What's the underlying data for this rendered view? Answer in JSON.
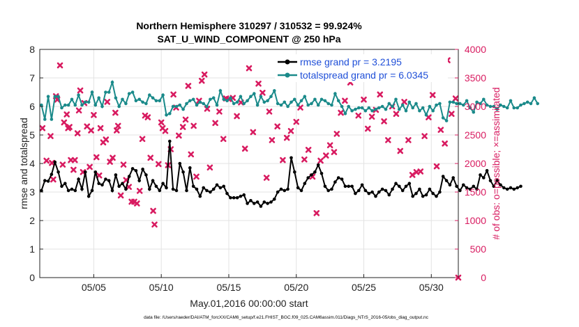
{
  "figure": {
    "title_line1": "Northern Hemisphere 310297 / 310532 = 99.924%",
    "title_line2": "SAT_U_WIND_COMPONENT @ 250 hPa",
    "footer": "data file: /Users/raeder/DAI/ATM_forcXX/CAM6_setup/f.e21.FHIST_BGC.f09_025.CAM6assim.011/Diags_NTrS_2016-05/obs_diag_output.nc"
  },
  "chart_data": {
    "type": "line",
    "title": "Northern Hemisphere 310297 / 310532 = 99.924%",
    "subtitle": "SAT_U_WIND_COMPONENT @ 250 hPa",
    "xlabel": "May.01,2016 00:00:00 start",
    "ylabel": "rmse and totalspread",
    "y2label": "# of obs: o=possible; ×=assimilated",
    "xlim": [
      1.0,
      32.0
    ],
    "ylim": [
      0,
      8
    ],
    "y2lim": [
      0,
      4000
    ],
    "xticks": [
      5,
      10,
      15,
      20,
      25,
      30
    ],
    "xticklabels": [
      "05/05",
      "05/10",
      "05/15",
      "05/20",
      "05/25",
      "05/30"
    ],
    "yticks": [
      0,
      1,
      2,
      3,
      4,
      5,
      6,
      7,
      8
    ],
    "y2ticks": [
      0,
      500,
      1000,
      1500,
      2000,
      2500,
      3000,
      3500,
      4000
    ],
    "grid": true,
    "legend_position": "top-right",
    "colors": {
      "rmse": "#000000",
      "spread": "#1a8a8a",
      "obs": "#d81b60",
      "y2axis": "#d81b60",
      "legend_text": "#1f4fd8"
    },
    "series": [
      {
        "name": "rmse grand pr = 3.2195",
        "axis": "left",
        "x_start": 1.125,
        "x_step": 0.25,
        "values": [
          3.05,
          3.4,
          3.38,
          3.62,
          4.05,
          3.7,
          3.2,
          3.3,
          3.05,
          3.1,
          3.05,
          3.45,
          3.1,
          3.7,
          2.85,
          3.05,
          3.7,
          3.3,
          3.25,
          3.45,
          3.4,
          3.05,
          3.6,
          3.2,
          3.3,
          3.1,
          3.55,
          3.82,
          3.75,
          3.4,
          3.8,
          3.6,
          3.1,
          3.4,
          3.2,
          3.05,
          3.3,
          3.15,
          4.78,
          3.1,
          3.05,
          4.0,
          3.7,
          3.05,
          3.85,
          3.2,
          3.1,
          2.85,
          3.15,
          3.05,
          3.0,
          3.1,
          3.25,
          3.15,
          3.2,
          2.95,
          2.8,
          2.8,
          2.8,
          2.85,
          2.9,
          2.6,
          2.7,
          2.6,
          2.65,
          2.5,
          2.65,
          2.6,
          2.65,
          2.75,
          3.0,
          3.1,
          3.05,
          3.1,
          4.2,
          3.7,
          3.15,
          3.05,
          3.3,
          3.5,
          3.6,
          3.7,
          3.95,
          3.65,
          3.2,
          3.05,
          3.1,
          3.35,
          3.5,
          3.45,
          3.2,
          3.2,
          3.2,
          2.95,
          3.05,
          3.25,
          3.05,
          2.95,
          3.0,
          2.85,
          3.0,
          3.1,
          3.05,
          2.9,
          3.1,
          3.3,
          3.2,
          3.05,
          3.2,
          3.3,
          2.85,
          2.95,
          3.1,
          2.85,
          2.9,
          3.1,
          2.95,
          2.85,
          3.0,
          3.55,
          3.4,
          3.25,
          3.5,
          3.2,
          3.05,
          3.25,
          3.15,
          3.1,
          3.2,
          3.1,
          3.6,
          3.5,
          3.75,
          3.4,
          3.2,
          3.4,
          3.25,
          3.15,
          3.1,
          3.15,
          3.1,
          3.15,
          3.2
        ]
      },
      {
        "name": "totalspread grand pr = 6.0345",
        "axis": "left",
        "x_start": 1.125,
        "x_step": 0.25,
        "values": [
          6.05,
          5.55,
          6.35,
          5.55,
          6.35,
          6.35,
          5.95,
          6.05,
          6.05,
          6.25,
          6.05,
          6.4,
          6.05,
          6.15,
          6.15,
          6.5,
          6.05,
          6.3,
          6.0,
          6.5,
          6.5,
          6.85,
          6.3,
          6.0,
          6.25,
          6.1,
          6.45,
          6.5,
          6.2,
          6.25,
          6.15,
          6.1,
          6.4,
          6.3,
          6.2,
          6.2,
          6.4,
          5.7,
          5.75,
          6.0,
          6.0,
          6.05,
          5.9,
          6.1,
          6.2,
          6.25,
          6.05,
          6.15,
          6.1,
          6.0,
          6.25,
          6.3,
          6.05,
          6.55,
          6.25,
          6.2,
          6.3,
          6.1,
          6.15,
          6.35,
          6.1,
          6.2,
          6.35,
          6.45,
          6.05,
          6.35,
          6.15,
          6.2,
          6.35,
          6.55,
          6.1,
          6.05,
          6.15,
          6.0,
          6.15,
          6.25,
          6.05,
          6.2,
          6.35,
          6.05,
          6.1,
          6.25,
          6.05,
          6.25,
          6.2,
          6.1,
          6.05,
          6.45,
          6.2,
          6.0,
          5.75,
          6.0,
          5.85,
          5.9,
          5.95,
          5.95,
          5.85,
          5.95,
          5.85,
          5.9,
          5.95,
          6.0,
          5.9,
          6.1,
          6.0,
          6.25,
          5.9,
          6.05,
          5.85,
          6.15,
          5.95,
          6.1,
          5.85,
          5.95,
          5.7,
          6.0,
          5.85,
          6.05,
          6.1,
          5.6,
          5.5,
          6.15,
          6.15,
          6.1,
          6.1,
          6.05,
          6.2,
          5.95,
          5.8,
          6.15,
          6.1,
          6.25,
          6.05,
          6.0,
          6.0,
          5.9,
          6.05,
          6.0,
          5.95,
          6.2,
          5.95,
          5.95,
          6.05,
          6.1,
          6.15,
          6.1,
          6.3,
          6.1
        ]
      },
      {
        "name": "assimilated",
        "axis": "right",
        "marker": "x",
        "points": [
          [
            1.2,
            2620
          ],
          [
            1.5,
            2050
          ],
          [
            1.8,
            2480
          ],
          [
            1.9,
            2010
          ],
          [
            2.0,
            1720
          ],
          [
            2.2,
            3180
          ],
          [
            2.3,
            3120
          ],
          [
            2.5,
            3720
          ],
          [
            2.7,
            1980
          ],
          [
            2.8,
            2720
          ],
          [
            3.0,
            2860
          ],
          [
            3.1,
            2620
          ],
          [
            3.2,
            2640
          ],
          [
            3.3,
            2060
          ],
          [
            3.5,
            1890
          ],
          [
            3.6,
            2060
          ],
          [
            3.8,
            2530
          ],
          [
            3.9,
            2930
          ],
          [
            4.0,
            3280
          ],
          [
            4.2,
            1850
          ],
          [
            4.3,
            3060
          ],
          [
            4.5,
            2650
          ],
          [
            4.7,
            1940
          ],
          [
            4.8,
            2580
          ],
          [
            5.0,
            2850
          ],
          [
            5.2,
            2110
          ],
          [
            5.4,
            1790
          ],
          [
            5.5,
            2620
          ],
          [
            5.7,
            2370
          ],
          [
            5.9,
            2420
          ],
          [
            6.0,
            3080
          ],
          [
            6.2,
            2030
          ],
          [
            6.4,
            2100
          ],
          [
            6.6,
            2890
          ],
          [
            6.7,
            2580
          ],
          [
            6.8,
            2660
          ],
          [
            7.0,
            1440
          ],
          [
            7.2,
            1980
          ],
          [
            7.4,
            1710
          ],
          [
            7.6,
            1590
          ],
          [
            7.8,
            1330
          ],
          [
            8.0,
            1330
          ],
          [
            8.2,
            1300
          ],
          [
            8.4,
            1520
          ],
          [
            8.6,
            2430
          ],
          [
            8.8,
            2840
          ],
          [
            9.0,
            2810
          ],
          [
            9.2,
            2100
          ],
          [
            9.4,
            1170
          ],
          [
            9.5,
            930
          ],
          [
            9.8,
            1990
          ],
          [
            10.0,
            2720
          ],
          [
            10.1,
            2620
          ],
          [
            10.3,
            2570
          ],
          [
            10.5,
            1970
          ],
          [
            10.7,
            2250
          ],
          [
            10.9,
            3210
          ],
          [
            11.1,
            2980
          ],
          [
            11.3,
            2490
          ],
          [
            11.6,
            2640
          ],
          [
            11.8,
            2770
          ],
          [
            12.0,
            3360
          ],
          [
            12.2,
            2160
          ],
          [
            12.4,
            2660
          ],
          [
            12.6,
            1770
          ],
          [
            12.8,
            3100
          ],
          [
            13.0,
            3450
          ],
          [
            13.2,
            3560
          ],
          [
            13.4,
            2960
          ],
          [
            13.6,
            1930
          ],
          [
            14.0,
            2710
          ],
          [
            14.3,
            2910
          ],
          [
            14.6,
            2430
          ],
          [
            14.8,
            3140
          ],
          [
            15.0,
            3130
          ],
          [
            15.3,
            3150
          ],
          [
            15.6,
            2830
          ],
          [
            15.9,
            3070
          ],
          [
            16.2,
            2260
          ],
          [
            16.5,
            3670
          ],
          [
            16.8,
            2550
          ],
          [
            17.2,
            3400
          ],
          [
            17.5,
            3240
          ],
          [
            17.8,
            1750
          ],
          [
            18.0,
            2910
          ],
          [
            18.2,
            2410
          ],
          [
            18.6,
            2650
          ],
          [
            19.0,
            2060
          ],
          [
            19.3,
            2450
          ],
          [
            19.6,
            2570
          ],
          [
            20.0,
            2730
          ],
          [
            20.3,
            2980
          ],
          [
            20.6,
            2070
          ],
          [
            20.9,
            2240
          ],
          [
            21.2,
            1770
          ],
          [
            21.5,
            1130
          ],
          [
            21.8,
            2050
          ],
          [
            22.2,
            2140
          ],
          [
            22.5,
            2320
          ],
          [
            22.8,
            2200
          ],
          [
            23.0,
            2520
          ],
          [
            23.3,
            2890
          ],
          [
            23.6,
            3100
          ],
          [
            24.0,
            3420
          ],
          [
            24.3,
            3530
          ],
          [
            24.6,
            2840
          ],
          [
            25.0,
            3120
          ],
          [
            25.3,
            2610
          ],
          [
            25.6,
            2820
          ],
          [
            25.9,
            2940
          ],
          [
            26.2,
            3210
          ],
          [
            26.5,
            2740
          ],
          [
            26.8,
            2410
          ],
          [
            27.1,
            3000
          ],
          [
            27.4,
            2870
          ],
          [
            27.7,
            2220
          ],
          [
            28.0,
            3080
          ],
          [
            28.3,
            2410
          ],
          [
            28.6,
            1800
          ],
          [
            28.9,
            1850
          ],
          [
            29.2,
            1860
          ],
          [
            29.5,
            2480
          ],
          [
            29.8,
            2810
          ],
          [
            30.1,
            3200
          ],
          [
            30.4,
            1950
          ],
          [
            30.7,
            2590
          ],
          [
            31.0,
            2350
          ],
          [
            31.2,
            3810
          ],
          [
            31.5,
            2870
          ],
          [
            31.8,
            3140
          ],
          [
            32.0,
            0
          ]
        ]
      }
    ]
  }
}
